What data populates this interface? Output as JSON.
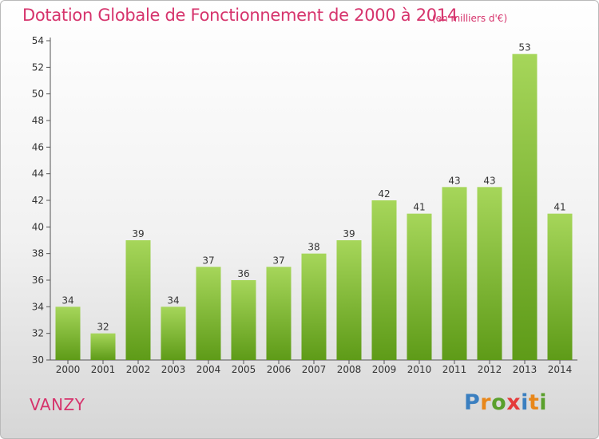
{
  "header": {
    "title": "Dotation Globale de Fonctionnement de 2000 à 2014",
    "subtitle": "(en milliers d'€)"
  },
  "commune": "VANZY",
  "logo": {
    "text": "Proxiti",
    "letter_colors": [
      "#3a7fc0",
      "#e8871a",
      "#5aa02c",
      "#e43b3b",
      "#3a7fc0",
      "#e8871a",
      "#5aa02c"
    ]
  },
  "colors": {
    "title": "#d6336c",
    "bar_top": "#a6d65a",
    "bar_bottom": "#5e9b18",
    "axis": "#555555"
  },
  "chart_data": {
    "type": "bar",
    "categories": [
      "2000",
      "2001",
      "2002",
      "2003",
      "2004",
      "2005",
      "2006",
      "2007",
      "2008",
      "2009",
      "2010",
      "2011",
      "2012",
      "2013",
      "2014"
    ],
    "values": [
      34,
      32,
      39,
      34,
      37,
      36,
      37,
      38,
      39,
      42,
      41,
      43,
      43,
      53,
      41
    ],
    "ylim": [
      30,
      54
    ],
    "yticks": [
      30,
      32,
      34,
      36,
      38,
      40,
      42,
      44,
      46,
      48,
      50,
      52,
      54
    ],
    "grid": false,
    "data_labels": true
  }
}
